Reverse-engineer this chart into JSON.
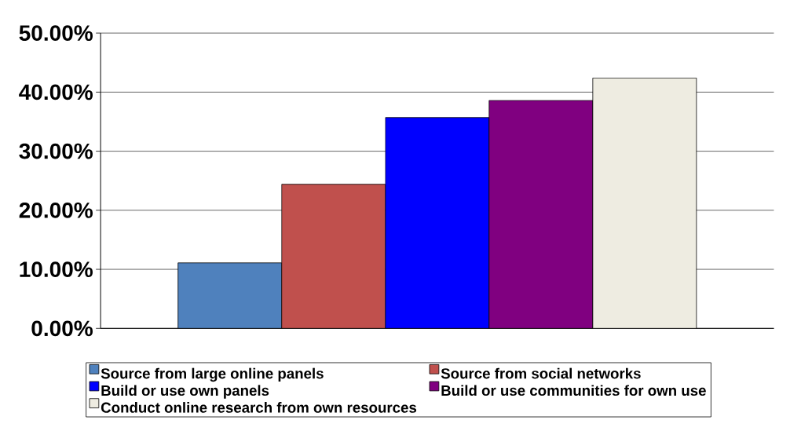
{
  "chart_data": {
    "type": "bar",
    "categories": [
      null
    ],
    "series": [
      {
        "name": "Source from large online panels",
        "color": "#4f81bd",
        "values": [
          11.1
        ]
      },
      {
        "name": "Source from social networks",
        "color": "#c0504d",
        "values": [
          24.4
        ]
      },
      {
        "name": "Build or use own panels",
        "color": "#0000ff",
        "values": [
          35.7
        ]
      },
      {
        "name": "Build or use communities for own use",
        "color": "#800080",
        "values": [
          38.6
        ]
      },
      {
        "name": "Conduct online research from own resources",
        "color": "#eeece1",
        "values": [
          42.4
        ]
      }
    ],
    "ylim": [
      0,
      50
    ],
    "yticks": [
      {
        "value": 0,
        "label": "0.00%"
      },
      {
        "value": 10,
        "label": "10.00%"
      },
      {
        "value": 20,
        "label": "20.00%"
      },
      {
        "value": 30,
        "label": "30.00%"
      },
      {
        "value": 40,
        "label": "40.00%"
      },
      {
        "value": 50,
        "label": "50.00%"
      }
    ],
    "grid": "y",
    "legend": "bottom"
  }
}
